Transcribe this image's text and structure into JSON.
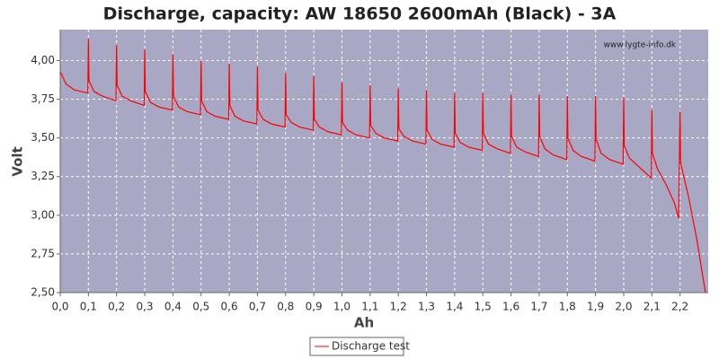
{
  "chart_data": {
    "type": "line",
    "title": "Discharge, capacity: AW 18650 2600mAh (Black) - 3A",
    "x_label": "Ah",
    "y_label": "Volt",
    "annotation": "www.lygte-info.dk",
    "xlim": [
      0,
      2.3
    ],
    "ylim": [
      2.5,
      4.2
    ],
    "xticks": [
      {
        "value": 0,
        "label": "0,0"
      },
      {
        "value": 0.1,
        "label": "0,1"
      },
      {
        "value": 0.2,
        "label": "0,2"
      },
      {
        "value": 0.3,
        "label": "0,3"
      },
      {
        "value": 0.4,
        "label": "0,4"
      },
      {
        "value": 0.5,
        "label": "0,5"
      },
      {
        "value": 0.6,
        "label": "0,6"
      },
      {
        "value": 0.7,
        "label": "0,7"
      },
      {
        "value": 0.8,
        "label": "0,8"
      },
      {
        "value": 0.9,
        "label": "0,9"
      },
      {
        "value": 1,
        "label": "1,0"
      },
      {
        "value": 1.1,
        "label": "1,1"
      },
      {
        "value": 1.2,
        "label": "1,2"
      },
      {
        "value": 1.3,
        "label": "1,3"
      },
      {
        "value": 1.4,
        "label": "1,4"
      },
      {
        "value": 1.5,
        "label": "1,5"
      },
      {
        "value": 1.6,
        "label": "1,6"
      },
      {
        "value": 1.7,
        "label": "1,7"
      },
      {
        "value": 1.8,
        "label": "1,8"
      },
      {
        "value": 1.9,
        "label": "1,9"
      },
      {
        "value": 2,
        "label": "2,0"
      },
      {
        "value": 2.1,
        "label": "2,1"
      },
      {
        "value": 2.2,
        "label": "2,2"
      }
    ],
    "yticks": [
      {
        "value": 2.5,
        "label": "2,50"
      },
      {
        "value": 2.75,
        "label": "2,75"
      },
      {
        "value": 3,
        "label": "3,00"
      },
      {
        "value": 3.25,
        "label": "3,25"
      },
      {
        "value": 3.5,
        "label": "3,50"
      },
      {
        "value": 3.75,
        "label": "3,75"
      },
      {
        "value": 4,
        "label": "4,00"
      }
    ],
    "grid": true,
    "legend": "bottom",
    "x": [
      0,
      0.02,
      0.05,
      0.098,
      0.1,
      0.102,
      0.12,
      0.15,
      0.198,
      0.2,
      0.202,
      0.22,
      0.25,
      0.298,
      0.3,
      0.302,
      0.32,
      0.35,
      0.398,
      0.4,
      0.402,
      0.42,
      0.45,
      0.498,
      0.5,
      0.502,
      0.52,
      0.55,
      0.598,
      0.6,
      0.602,
      0.62,
      0.65,
      0.698,
      0.7,
      0.702,
      0.72,
      0.75,
      0.798,
      0.8,
      0.802,
      0.82,
      0.85,
      0.898,
      0.9,
      0.902,
      0.92,
      0.95,
      0.998,
      1.0,
      1.002,
      1.02,
      1.05,
      1.098,
      1.1,
      1.102,
      1.12,
      1.15,
      1.198,
      1.2,
      1.202,
      1.22,
      1.25,
      1.298,
      1.3,
      1.302,
      1.32,
      1.35,
      1.398,
      1.4,
      1.402,
      1.42,
      1.45,
      1.498,
      1.5,
      1.502,
      1.52,
      1.55,
      1.598,
      1.6,
      1.602,
      1.62,
      1.65,
      1.698,
      1.7,
      1.702,
      1.72,
      1.75,
      1.798,
      1.8,
      1.802,
      1.82,
      1.85,
      1.898,
      1.9,
      1.902,
      1.92,
      1.95,
      1.998,
      2.0,
      2.002,
      2.02,
      2.05,
      2.098,
      2.1,
      2.102,
      2.12,
      2.15,
      2.18,
      2.195,
      2.2,
      2.202,
      2.23,
      2.26,
      2.29
    ],
    "series": [
      {
        "name": "Discharge test",
        "color": "#ff0000",
        "values": [
          3.93,
          3.85,
          3.81,
          3.79,
          4.14,
          3.87,
          3.8,
          3.77,
          3.74,
          4.1,
          3.84,
          3.77,
          3.74,
          3.71,
          4.07,
          3.8,
          3.73,
          3.7,
          3.68,
          4.04,
          3.77,
          3.7,
          3.67,
          3.65,
          4.0,
          3.74,
          3.67,
          3.64,
          3.62,
          3.98,
          3.71,
          3.64,
          3.61,
          3.59,
          3.96,
          3.68,
          3.62,
          3.59,
          3.57,
          3.92,
          3.65,
          3.6,
          3.57,
          3.55,
          3.9,
          3.62,
          3.57,
          3.54,
          3.52,
          3.86,
          3.6,
          3.55,
          3.52,
          3.5,
          3.84,
          3.58,
          3.53,
          3.5,
          3.48,
          3.82,
          3.56,
          3.51,
          3.48,
          3.46,
          3.81,
          3.55,
          3.49,
          3.46,
          3.44,
          3.79,
          3.53,
          3.47,
          3.44,
          3.42,
          3.79,
          3.53,
          3.46,
          3.43,
          3.4,
          3.78,
          3.51,
          3.44,
          3.41,
          3.38,
          3.78,
          3.51,
          3.43,
          3.39,
          3.36,
          3.77,
          3.5,
          3.42,
          3.38,
          3.35,
          3.77,
          3.49,
          3.4,
          3.36,
          3.33,
          3.76,
          3.45,
          3.37,
          3.32,
          3.24,
          3.68,
          3.4,
          3.3,
          3.2,
          3.08,
          2.98,
          3.67,
          3.34,
          3.12,
          2.84,
          2.5
        ]
      }
    ]
  }
}
